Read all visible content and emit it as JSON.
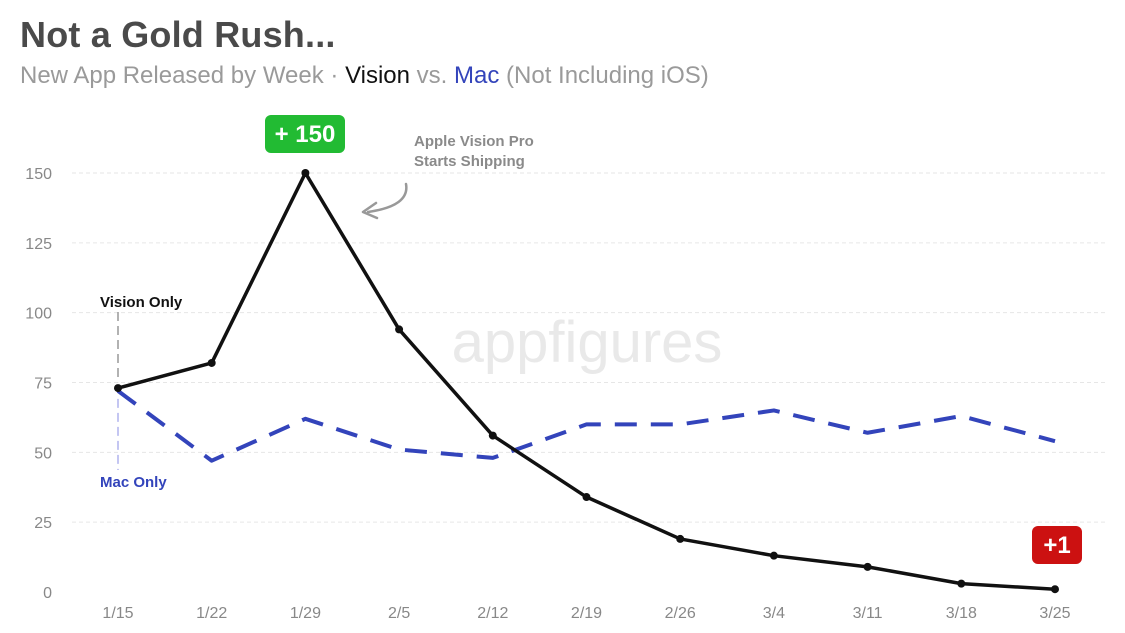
{
  "header": {
    "title": "Not a Gold Rush...",
    "subtitle_prefix": "New App Released by Week · ",
    "subtitle_vision": "Vision",
    "subtitle_vs": " vs. ",
    "subtitle_mac": "Mac",
    "subtitle_suffix": " (Not Including iOS)"
  },
  "watermark": "appfigures",
  "colors": {
    "vision": "#111111",
    "mac": "#3344bb",
    "badge_peak": "#22bb33",
    "badge_end": "#cc1111",
    "grid": "#e6e6e6",
    "arrow": "#999999"
  },
  "annotations": {
    "peak_badge": "+ 150",
    "end_badge": "+1",
    "shipping_line1": "Apple Vision Pro",
    "shipping_line2": "Starts Shipping",
    "vision_label": "Vision Only",
    "mac_label": "Mac Only"
  },
  "chart_data": {
    "type": "line",
    "categories": [
      "1/15",
      "1/22",
      "1/29",
      "2/5",
      "2/12",
      "2/19",
      "2/26",
      "3/4",
      "3/11",
      "3/18",
      "3/25"
    ],
    "series": [
      {
        "name": "Vision",
        "values": [
          73,
          82,
          150,
          94,
          56,
          34,
          19,
          13,
          9,
          3,
          1
        ],
        "style": "solid",
        "markers": true
      },
      {
        "name": "Mac",
        "values": [
          72,
          47,
          62,
          51,
          48,
          60,
          60,
          65,
          57,
          63,
          54
        ],
        "style": "dashed",
        "markers": false
      }
    ],
    "yticks": [
      0,
      25,
      50,
      75,
      100,
      125,
      150
    ],
    "ylim": [
      0,
      150
    ],
    "grid": true,
    "legend": "none",
    "title": "Not a Gold Rush...",
    "xlabel": "",
    "ylabel": ""
  }
}
